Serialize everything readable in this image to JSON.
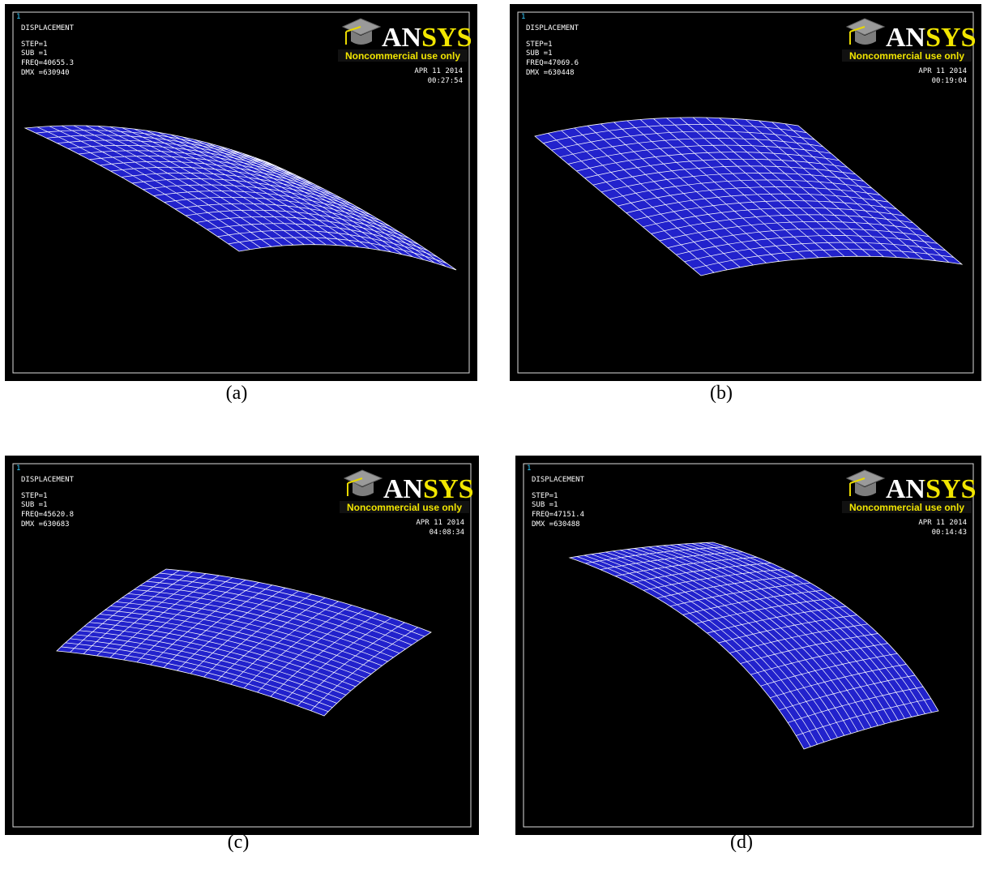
{
  "panels": [
    {
      "window_number": "1",
      "title": "DISPLACEMENT",
      "step": "STEP=1",
      "sub": "SUB =1",
      "freq": "FREQ=40655.3",
      "dmx": "DMX =630940",
      "date": "APR 11 2014",
      "time": "00:27:54",
      "logo": "ANSYS",
      "logo_note": "Noncommercial use only",
      "caption": "(a)"
    },
    {
      "window_number": "1",
      "title": "DISPLACEMENT",
      "step": "STEP=1",
      "sub": "SUB =1",
      "freq": "FREQ=47069.6",
      "dmx": "DMX =630448",
      "date": "APR 11 2014",
      "time": "00:19:04",
      "logo": "ANSYS",
      "logo_note": "Noncommercial use only",
      "caption": "(b)"
    },
    {
      "window_number": "1",
      "title": "DISPLACEMENT",
      "step": "STEP=1",
      "sub": "SUB =1",
      "freq": "FREQ=45620.8",
      "dmx": "DMX =630683",
      "date": "APR 11 2014",
      "time": "04:08:34",
      "logo": "ANSYS",
      "logo_note": "Noncommercial use only",
      "caption": "(c)"
    },
    {
      "window_number": "1",
      "title": "DISPLACEMENT",
      "step": "STEP=1",
      "sub": "SUB =1",
      "freq": "FREQ=47151.4",
      "dmx": "DMX =630488",
      "date": "APR 11 2014",
      "time": "00:14:43",
      "logo": "ANSYS",
      "logo_note": "Noncommercial use only",
      "caption": "(d)"
    }
  ]
}
